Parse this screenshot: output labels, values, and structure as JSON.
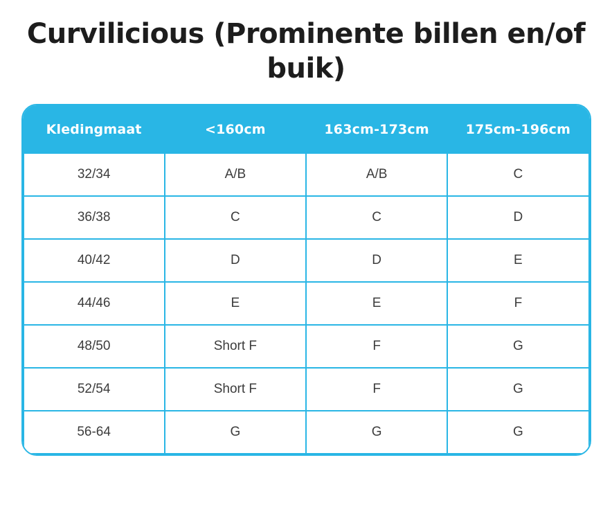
{
  "title": "Curvilicious (Prominente billen en/of buik)",
  "colors": {
    "accent": "#29B6E5",
    "title_text": "#1D1D1D",
    "body_text": "#3C3C3C",
    "header_text": "#FFFFFF",
    "background": "#FFFFFF"
  },
  "chart_data": {
    "type": "table",
    "title": "Curvilicious (Prominente billen en/of buik)",
    "columns": [
      "Kledingmaat",
      "<160cm",
      "163cm-173cm",
      "175cm-196cm"
    ],
    "rows": [
      [
        "32/34",
        "A/B",
        "A/B",
        "C"
      ],
      [
        "36/38",
        "C",
        "C",
        "D"
      ],
      [
        "40/42",
        "D",
        "D",
        "E"
      ],
      [
        "44/46",
        "E",
        "E",
        "F"
      ],
      [
        "48/50",
        "Short F",
        "F",
        "G"
      ],
      [
        "52/54",
        "Short F",
        "F",
        "G"
      ],
      [
        "56-64",
        "G",
        "G",
        "G"
      ]
    ]
  }
}
